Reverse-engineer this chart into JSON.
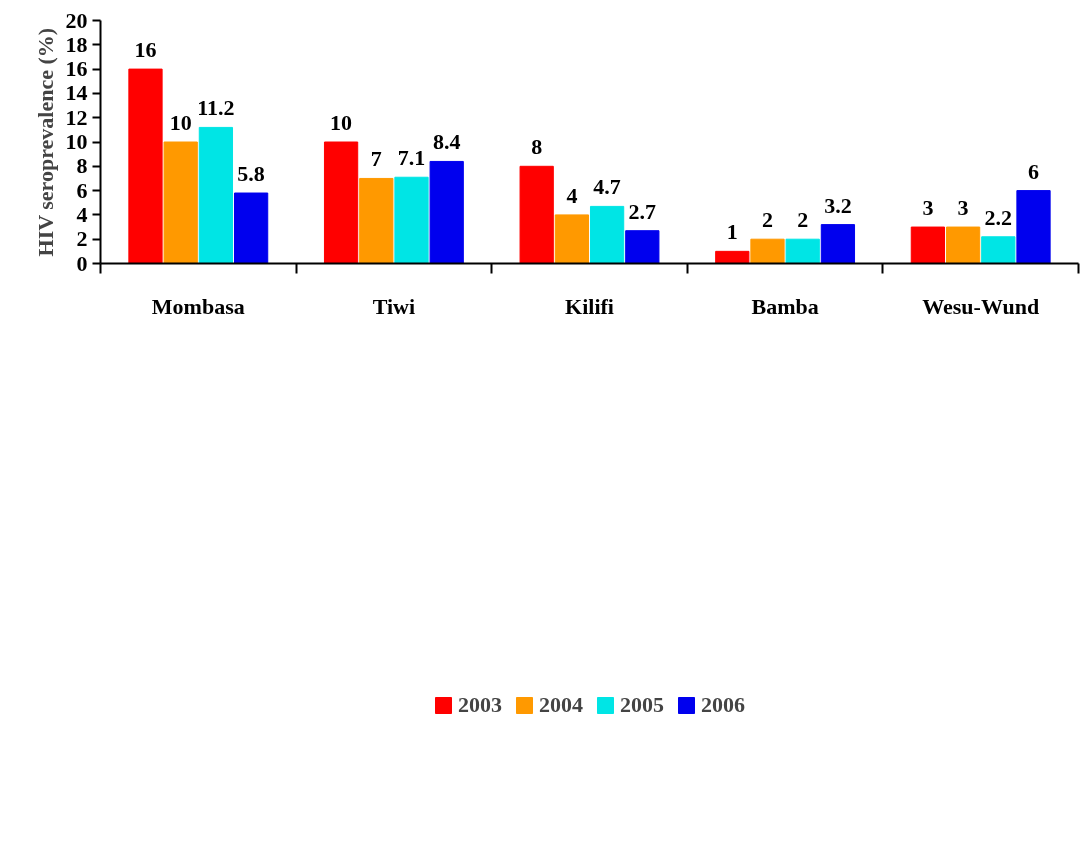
{
  "chart_data": {
    "type": "bar",
    "ylabel": "HIV seroprevalence (%)",
    "categories": [
      "Mombasa",
      "Tiwi",
      "Kilifi",
      "Bamba",
      "Wesu-Wund"
    ],
    "series": [
      {
        "name": "2003",
        "color": "#ff0000",
        "values": [
          16,
          10,
          8,
          1,
          3
        ]
      },
      {
        "name": "2004",
        "color": "#ff9900",
        "values": [
          10,
          7,
          4,
          2,
          3
        ]
      },
      {
        "name": "2005",
        "color": "#00e5e5",
        "values": [
          11.2,
          7.1,
          4.7,
          2,
          2.2
        ]
      },
      {
        "name": "2006",
        "color": "#0000ee",
        "values": [
          5.8,
          8.4,
          2.7,
          3.2,
          6
        ]
      }
    ],
    "ylim": [
      0,
      20
    ],
    "yticks": [
      0,
      2,
      4,
      6,
      8,
      10,
      12,
      14,
      16,
      18,
      20
    ],
    "data_labels": true,
    "grid": false,
    "legend": "bottom"
  }
}
